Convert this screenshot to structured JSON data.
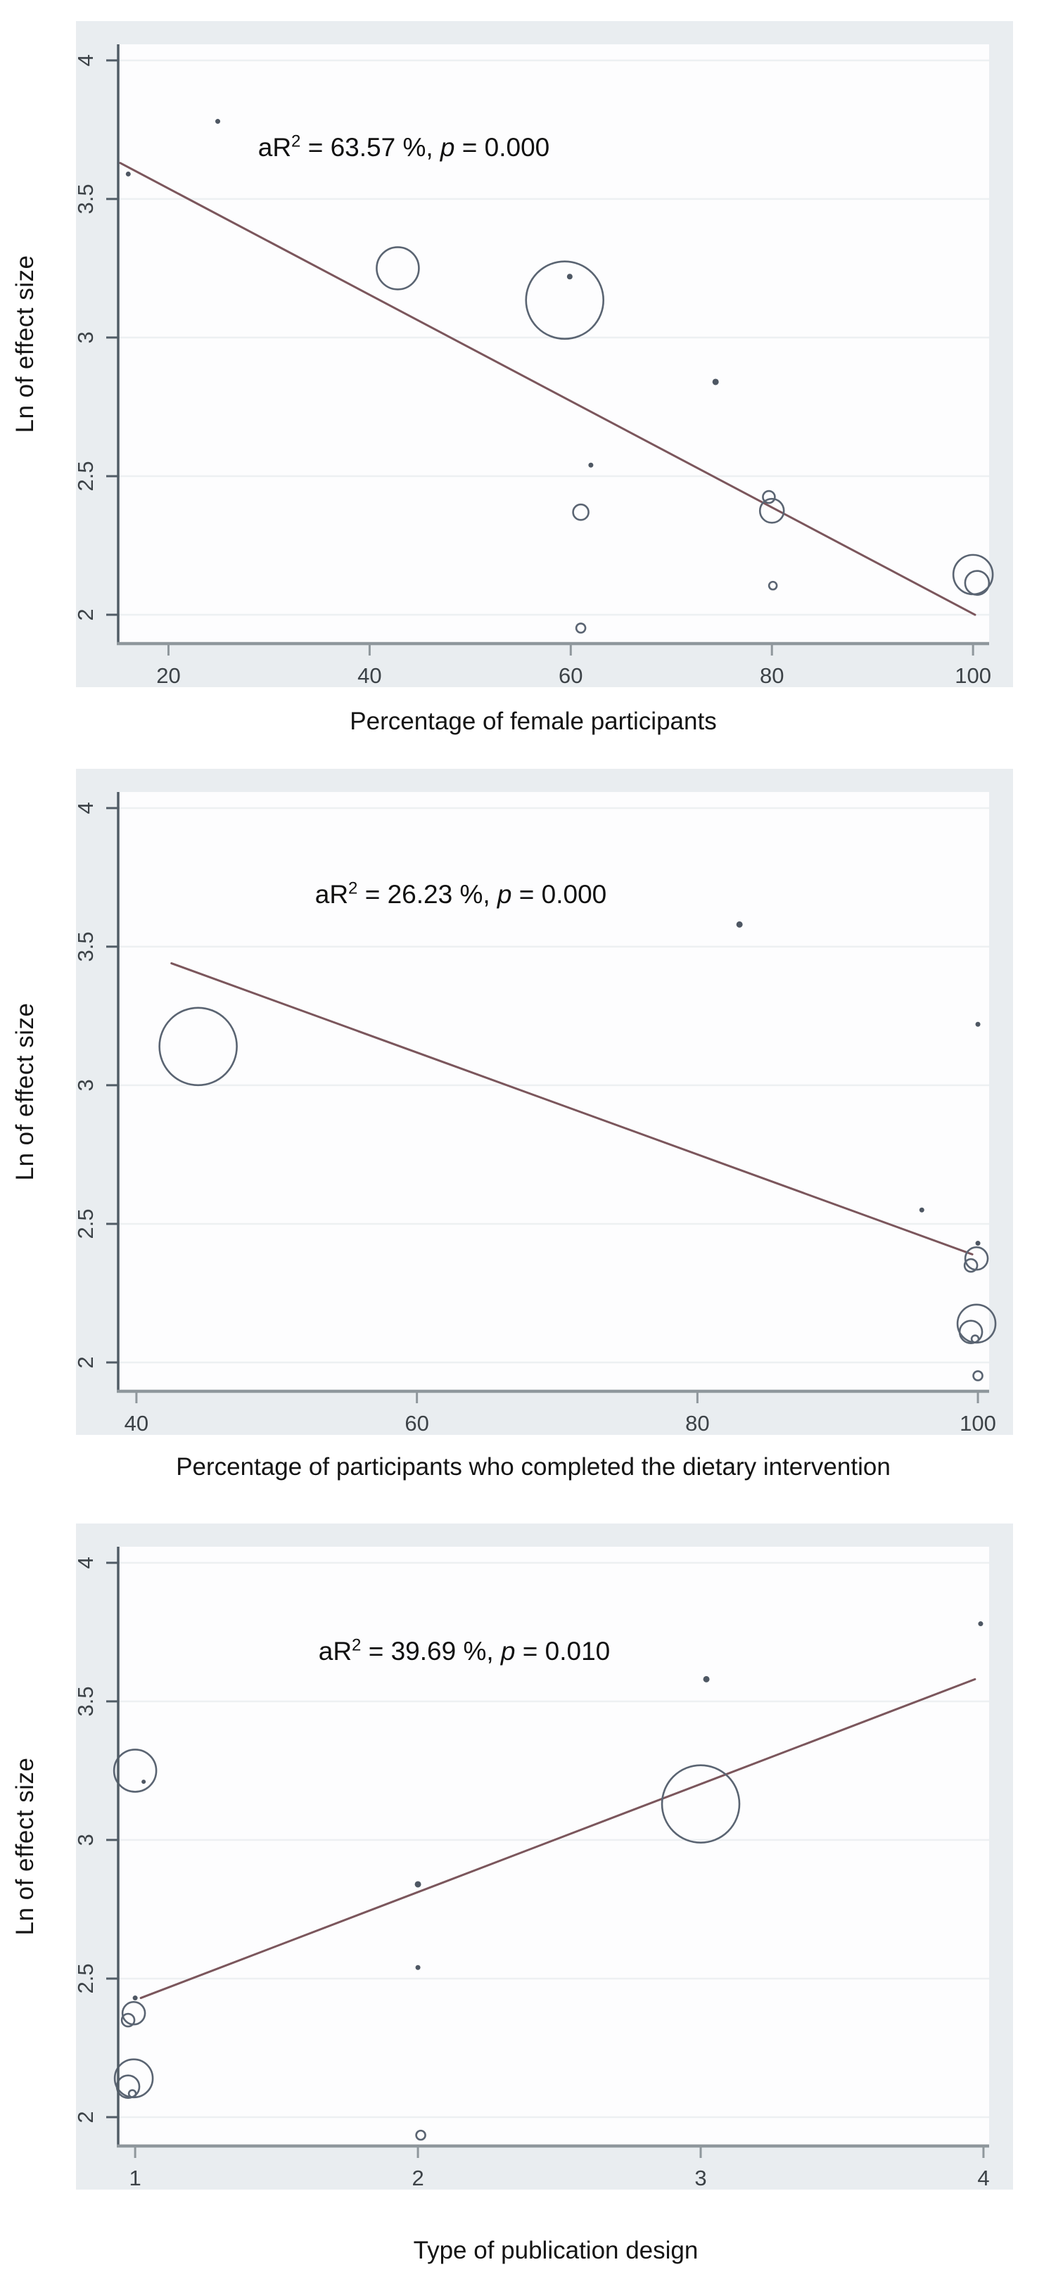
{
  "figure": {
    "description": "Three meta-regression bubble plots of ln effect size against study-level moderators, each with a fitted regression line and adjusted R-squared annotation",
    "shared_ylabel": "Ln of effect size"
  },
  "colors": {
    "panel_bg": "#e9edf0",
    "plot_bg": "#fdfdfe",
    "grid": "#edf0f2",
    "axis_left": "#515c66",
    "axis_bottom": "#8f979c",
    "bubble_stroke": "#5a6472",
    "dot_fill": "#4e5763",
    "regression_line": "#7b565c",
    "tick_text": "#3c4247",
    "label_text": "#141414"
  },
  "chart_data": [
    {
      "type": "scatter",
      "subtype": "bubble-meta-regression",
      "xlabel": "Percentage of female participants",
      "ylabel": "Ln of effect size",
      "annotation": "aR² = 63.57 %, p = 0.000",
      "annotation_parts": {
        "base": "aR",
        "sup": "2",
        "mid": " = 63.57 %, ",
        "pvar": "p",
        "tail": " = 0.000"
      },
      "x_ticks": [
        20,
        40,
        60,
        80,
        100
      ],
      "y_ticks": [
        4,
        3.5,
        3,
        2.5,
        2
      ],
      "xlim": [
        15.0,
        101.6
      ],
      "ylim": [
        1.896,
        4.058
      ],
      "grid": "horizontal",
      "legend": "none",
      "regression_line": {
        "x1": 15.2,
        "y1": 3.63,
        "x2": 100.2,
        "y2": 2.0
      },
      "points": [
        {
          "x": 24.9,
          "y": 3.78,
          "r": 3.5,
          "filled": true
        },
        {
          "x": 16.0,
          "y": 3.59,
          "r": 3.5,
          "filled": true
        },
        {
          "x": 42.8,
          "y": 3.25,
          "r": 30,
          "filled": false
        },
        {
          "x": 59.4,
          "y": 3.135,
          "r": 55,
          "filled": false
        },
        {
          "x": 59.9,
          "y": 3.22,
          "r": 4,
          "filled": true
        },
        {
          "x": 74.4,
          "y": 2.84,
          "r": 4.5,
          "filled": true
        },
        {
          "x": 62.0,
          "y": 2.54,
          "r": 3.5,
          "filled": true
        },
        {
          "x": 61.0,
          "y": 2.37,
          "r": 11,
          "filled": false
        },
        {
          "x": 61.0,
          "y": 1.952,
          "r": 6.5,
          "filled": false
        },
        {
          "x": 80.0,
          "y": 2.375,
          "r": 17,
          "filled": false
        },
        {
          "x": 79.7,
          "y": 2.425,
          "r": 8.5,
          "filled": false
        },
        {
          "x": 80.1,
          "y": 2.105,
          "r": 5.5,
          "filled": false
        },
        {
          "x": 100.0,
          "y": 2.145,
          "r": 28,
          "filled": false
        },
        {
          "x": 100.4,
          "y": 2.115,
          "r": 17,
          "filled": false
        }
      ]
    },
    {
      "type": "scatter",
      "subtype": "bubble-meta-regression",
      "xlabel": "Percentage of participants who completed the dietary intervention",
      "ylabel": "Ln of effect size",
      "annotation": "aR² = 26.23 %, p = 0.000",
      "annotation_parts": {
        "base": "aR",
        "sup": "2",
        "mid": " = 26.23 %, ",
        "pvar": "p",
        "tail": " = 0.000"
      },
      "x_ticks": [
        40,
        60,
        80,
        100
      ],
      "y_ticks": [
        4,
        3.5,
        3,
        2.5,
        2
      ],
      "xlim": [
        38.7,
        100.8
      ],
      "ylim": [
        1.896,
        4.058
      ],
      "grid": "horizontal",
      "legend": "none",
      "regression_line": {
        "x1": 42.5,
        "y1": 3.44,
        "x2": 99.6,
        "y2": 2.39
      },
      "points": [
        {
          "x": 44.4,
          "y": 3.14,
          "r": 55,
          "filled": false
        },
        {
          "x": 83.0,
          "y": 3.58,
          "r": 4.5,
          "filled": true
        },
        {
          "x": 100.0,
          "y": 3.22,
          "r": 3.5,
          "filled": true
        },
        {
          "x": 96.0,
          "y": 2.55,
          "r": 3.5,
          "filled": true
        },
        {
          "x": 99.9,
          "y": 2.375,
          "r": 16,
          "filled": false
        },
        {
          "x": 99.5,
          "y": 2.35,
          "r": 9,
          "filled": false
        },
        {
          "x": 100.0,
          "y": 2.43,
          "r": 3.5,
          "filled": true
        },
        {
          "x": 99.9,
          "y": 2.14,
          "r": 27,
          "filled": false
        },
        {
          "x": 99.5,
          "y": 2.11,
          "r": 16,
          "filled": false
        },
        {
          "x": 99.8,
          "y": 2.085,
          "r": 5,
          "filled": false
        },
        {
          "x": 100.0,
          "y": 1.952,
          "r": 6.5,
          "filled": false
        }
      ]
    },
    {
      "type": "scatter",
      "subtype": "bubble-meta-regression",
      "xlabel": "Type of publication design",
      "ylabel": "Ln of effect size",
      "annotation": "aR² = 39.69 %, p = 0.010",
      "annotation_parts": {
        "base": "aR",
        "sup": "2",
        "mid": " = 39.69 %, ",
        "pvar": "p",
        "tail": " = 0.010"
      },
      "x_ticks": [
        1,
        2,
        3,
        4
      ],
      "y_ticks": [
        4,
        3.5,
        3,
        2.5,
        2
      ],
      "xlim": [
        0.94,
        4.02
      ],
      "ylim": [
        1.896,
        4.058
      ],
      "grid": "horizontal",
      "legend": "none",
      "regression_line": {
        "x1": 1.02,
        "y1": 2.43,
        "x2": 3.97,
        "y2": 3.58
      },
      "points": [
        {
          "x": 1.0,
          "y": 3.25,
          "r": 30,
          "filled": false
        },
        {
          "x": 1.03,
          "y": 3.21,
          "r": 3,
          "filled": true
        },
        {
          "x": 0.995,
          "y": 2.375,
          "r": 16,
          "filled": false
        },
        {
          "x": 0.975,
          "y": 2.35,
          "r": 9,
          "filled": false
        },
        {
          "x": 1.0,
          "y": 2.43,
          "r": 3.5,
          "filled": true
        },
        {
          "x": 0.995,
          "y": 2.14,
          "r": 27,
          "filled": false
        },
        {
          "x": 0.975,
          "y": 2.11,
          "r": 16,
          "filled": false
        },
        {
          "x": 0.99,
          "y": 2.085,
          "r": 5,
          "filled": false
        },
        {
          "x": 2.0,
          "y": 2.84,
          "r": 4.5,
          "filled": true
        },
        {
          "x": 2.0,
          "y": 2.54,
          "r": 3.5,
          "filled": true
        },
        {
          "x": 2.01,
          "y": 1.935,
          "r": 6.5,
          "filled": false
        },
        {
          "x": 3.02,
          "y": 3.58,
          "r": 4.5,
          "filled": true
        },
        {
          "x": 3.0,
          "y": 3.13,
          "r": 55,
          "filled": false
        },
        {
          "x": 3.99,
          "y": 3.78,
          "r": 3.5,
          "filled": true
        }
      ]
    }
  ]
}
